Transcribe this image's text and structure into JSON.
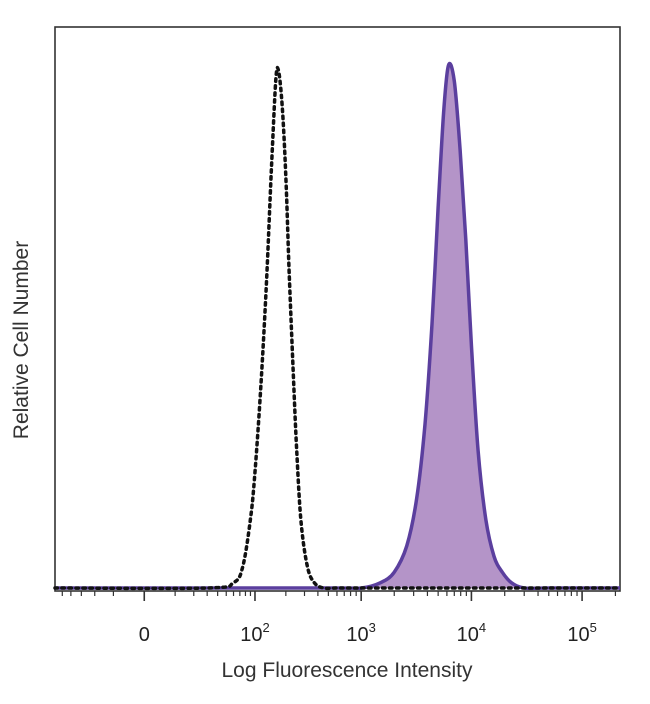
{
  "chart_data": {
    "type": "area",
    "title": "",
    "xlabel": "Log Fluorescence Intensity",
    "ylabel": "Relative Cell Number",
    "x_scale": "biexponential",
    "xlim": [
      -60,
      220000
    ],
    "ylim": [
      0,
      100
    ],
    "x_ticks": [
      {
        "value": 0,
        "base": "0",
        "exp": ""
      },
      {
        "value": 100,
        "base": "10",
        "exp": "2"
      },
      {
        "value": 1000,
        "base": "10",
        "exp": "3"
      },
      {
        "value": 10000,
        "base": "10",
        "exp": "4"
      },
      {
        "value": 100000,
        "base": "10",
        "exp": "5"
      }
    ],
    "grid": false,
    "legend": "none",
    "series": [
      {
        "style": "dotted-outline",
        "color": "#111111",
        "x": [
          -60,
          30,
          60,
          75,
          90,
          100,
          115,
          130,
          145,
          160,
          170,
          185,
          200,
          215,
          235,
          255,
          280,
          320,
          370,
          450,
          600,
          1000,
          3000,
          10000,
          50000,
          220000
        ],
        "y": [
          0,
          0,
          1,
          4,
          13,
          22,
          39,
          58,
          79,
          96,
          98,
          91,
          78,
          60,
          41,
          25,
          12,
          4,
          1,
          0,
          0,
          0,
          0,
          0,
          0,
          0
        ]
      },
      {
        "style": "filled",
        "color": "#5b3f9e",
        "fill": "#b494c8",
        "x": [
          -60,
          500,
          1000,
          1500,
          2000,
          2600,
          3200,
          3800,
          4400,
          5000,
          5600,
          6200,
          7000,
          7900,
          8900,
          10000,
          11500,
          13500,
          16000,
          19000,
          23000,
          30000,
          50000,
          220000
        ],
        "y": [
          0,
          0,
          0,
          1,
          3,
          8,
          17,
          31,
          50,
          72,
          90,
          99,
          96,
          83,
          66,
          46,
          26,
          13,
          6,
          3,
          1,
          0,
          0,
          0
        ]
      }
    ]
  }
}
